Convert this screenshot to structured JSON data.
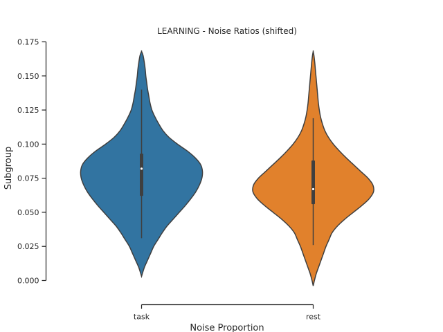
{
  "chart_data": {
    "type": "violin",
    "title": "LEARNING - Noise Ratios (shifted)",
    "xlabel": "Noise Proportion",
    "ylabel": "Subgroup",
    "categories": [
      "task",
      "rest"
    ],
    "ylim": [
      0.0,
      0.175
    ],
    "yticks": [
      0.0,
      0.025,
      0.05,
      0.075,
      0.1,
      0.125,
      0.15,
      0.175
    ],
    "ytick_labels": [
      "0.000",
      "0.025",
      "0.050",
      "0.075",
      "0.100",
      "0.125",
      "0.150",
      "0.175"
    ],
    "grid": false,
    "legend": "none",
    "series": [
      {
        "category": "task",
        "color": "#3274a1",
        "median": 0.082,
        "q1": 0.062,
        "q3": 0.093,
        "whisker_low": 0.031,
        "whisker_high": 0.14,
        "min": 0.003,
        "max": 0.168,
        "density": [
          [
            0.003,
            0.0
          ],
          [
            0.006,
            0.02
          ],
          [
            0.01,
            0.05
          ],
          [
            0.015,
            0.1
          ],
          [
            0.02,
            0.15
          ],
          [
            0.025,
            0.2
          ],
          [
            0.03,
            0.27
          ],
          [
            0.035,
            0.34
          ],
          [
            0.04,
            0.42
          ],
          [
            0.045,
            0.52
          ],
          [
            0.05,
            0.62
          ],
          [
            0.055,
            0.72
          ],
          [
            0.06,
            0.81
          ],
          [
            0.065,
            0.89
          ],
          [
            0.07,
            0.95
          ],
          [
            0.075,
            0.99
          ],
          [
            0.08,
            1.0
          ],
          [
            0.085,
            0.97
          ],
          [
            0.09,
            0.88
          ],
          [
            0.095,
            0.75
          ],
          [
            0.1,
            0.59
          ],
          [
            0.105,
            0.45
          ],
          [
            0.11,
            0.35
          ],
          [
            0.115,
            0.28
          ],
          [
            0.12,
            0.22
          ],
          [
            0.125,
            0.17
          ],
          [
            0.13,
            0.14
          ],
          [
            0.135,
            0.12
          ],
          [
            0.14,
            0.1
          ],
          [
            0.145,
            0.085
          ],
          [
            0.15,
            0.07
          ],
          [
            0.155,
            0.06
          ],
          [
            0.16,
            0.045
          ],
          [
            0.165,
            0.025
          ],
          [
            0.168,
            0.0
          ]
        ]
      },
      {
        "category": "rest",
        "color": "#e1812c",
        "median": 0.067,
        "q1": 0.056,
        "q3": 0.088,
        "whisker_low": 0.026,
        "whisker_high": 0.119,
        "min": -0.004,
        "max": 0.168,
        "density": [
          [
            -0.004,
            0.0
          ],
          [
            0.0,
            0.02
          ],
          [
            0.005,
            0.05
          ],
          [
            0.01,
            0.09
          ],
          [
            0.015,
            0.13
          ],
          [
            0.02,
            0.17
          ],
          [
            0.025,
            0.21
          ],
          [
            0.03,
            0.26
          ],
          [
            0.035,
            0.31
          ],
          [
            0.04,
            0.4
          ],
          [
            0.045,
            0.52
          ],
          [
            0.05,
            0.66
          ],
          [
            0.055,
            0.8
          ],
          [
            0.06,
            0.92
          ],
          [
            0.065,
            0.99
          ],
          [
            0.07,
            0.98
          ],
          [
            0.075,
            0.9
          ],
          [
            0.08,
            0.78
          ],
          [
            0.085,
            0.66
          ],
          [
            0.09,
            0.54
          ],
          [
            0.095,
            0.43
          ],
          [
            0.1,
            0.33
          ],
          [
            0.105,
            0.25
          ],
          [
            0.11,
            0.19
          ],
          [
            0.115,
            0.15
          ],
          [
            0.12,
            0.12
          ],
          [
            0.125,
            0.1
          ],
          [
            0.13,
            0.085
          ],
          [
            0.135,
            0.075
          ],
          [
            0.14,
            0.065
          ],
          [
            0.145,
            0.055
          ],
          [
            0.15,
            0.045
          ],
          [
            0.155,
            0.035
          ],
          [
            0.16,
            0.025
          ],
          [
            0.165,
            0.012
          ],
          [
            0.168,
            0.0
          ]
        ]
      }
    ]
  }
}
